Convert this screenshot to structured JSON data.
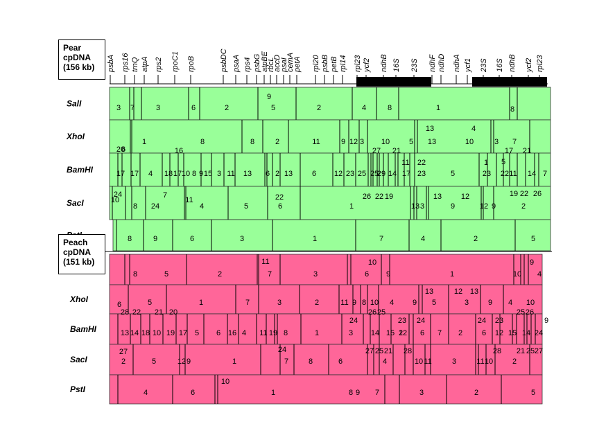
{
  "pear": {
    "title_lines": [
      "Pear",
      "cpDNA",
      "(156 kb)"
    ],
    "genes": [
      "psbA",
      "rps16",
      "trnQ",
      "atpA",
      "rps2",
      "rpoC1",
      "rpoB",
      "psbDC",
      "psaA",
      "rps4",
      "psbG",
      "atpBE",
      "rbcL",
      "accD",
      "psaI",
      "cemA",
      "petA",
      "rpl20",
      "psbB",
      "petB",
      "rpl14",
      "rpl23",
      "ycf2",
      "ndhB",
      "16S",
      "23S",
      "ndhF",
      "ndhD",
      "ndhA",
      "ycf1",
      "23S",
      "16S",
      "ndhB",
      "ycf2",
      "rpl23"
    ],
    "enzymes": [
      {
        "name": "SalI",
        "labels": [
          "3",
          "7",
          "3",
          "6",
          "2",
          "9",
          "5",
          "2",
          "4",
          "8",
          "1",
          "8"
        ]
      },
      {
        "name": "XhoI",
        "labels": [
          "6",
          "1",
          "8",
          "8",
          "2",
          "11",
          "9",
          "12",
          "3",
          "13",
          "10",
          "5",
          "13",
          "4",
          "10",
          "3",
          "7"
        ]
      },
      {
        "name": "BamHI",
        "labels": [
          "20",
          "17",
          "17",
          "4",
          "18",
          "17",
          "16",
          "10",
          "8",
          "9",
          "15",
          "3",
          "11",
          "13",
          "6",
          "2",
          "13",
          "6",
          "12",
          "23",
          "25",
          "25",
          "29",
          "27",
          "14",
          "21",
          "17",
          "11",
          "22",
          "23",
          "5",
          "1",
          "23",
          "5",
          "22",
          "11",
          "17",
          "21",
          "14",
          "7",
          "27",
          "29"
        ]
      },
      {
        "name": "SacI",
        "labels": [
          "24",
          "10",
          "8",
          "24",
          "7",
          "11",
          "4",
          "5",
          "22",
          "6",
          "1",
          "26",
          "22",
          "19",
          "13",
          "3",
          "13",
          "9",
          "12",
          "12",
          "9",
          "19",
          "22",
          "26",
          "2"
        ]
      },
      {
        "name": "PstI",
        "labels": [
          "8",
          "9",
          "6",
          "3",
          "1",
          "7",
          "4",
          "2",
          "5"
        ]
      }
    ]
  },
  "peach": {
    "title_lines": [
      "Peach",
      "cpDNA",
      "(151 kb)"
    ],
    "enzymes": [
      {
        "name": "SalI",
        "labels": [
          "8",
          "5",
          "2",
          "11",
          "7",
          "3",
          "10",
          "6",
          "9",
          "1",
          "10",
          "9",
          "4"
        ]
      },
      {
        "name": "XhoI",
        "labels": [
          "6",
          "5",
          "1",
          "7",
          "3",
          "2",
          "11",
          "9",
          "8",
          "10",
          "4",
          "9",
          "13",
          "5",
          "12",
          "13",
          "3",
          "9",
          "4",
          "10"
        ]
      },
      {
        "name": "BamHI",
        "labels": [
          "28",
          "22",
          "21",
          "20",
          "13",
          "14",
          "18",
          "10",
          "19",
          "17",
          "5",
          "6",
          "16",
          "4",
          "11",
          "19",
          "8",
          "1",
          "24",
          "3",
          "26",
          "25",
          "14",
          "15",
          "2",
          "23",
          "12",
          "24",
          "6",
          "7",
          "2",
          "24",
          "6",
          "23",
          "12",
          "15",
          "25",
          "26",
          "14",
          "9",
          "24"
        ]
      },
      {
        "name": "SacI",
        "labels": [
          "27",
          "2",
          "5",
          "12",
          "9",
          "1",
          "24",
          "7",
          "8",
          "6",
          "27",
          "25",
          "21",
          "4",
          "28",
          "10",
          "11",
          "3",
          "11",
          "10",
          "28",
          "2",
          "21",
          "25",
          "27"
        ]
      },
      {
        "name": "PstI",
        "labels": [
          "10",
          "4",
          "6",
          "1",
          "8",
          "9",
          "7",
          "3",
          "2",
          "5"
        ]
      }
    ]
  },
  "colors": {
    "pear_fill": "#99ff99",
    "peach_fill": "#ff6699",
    "ir_bar": "#000000",
    "line": "#000000"
  }
}
